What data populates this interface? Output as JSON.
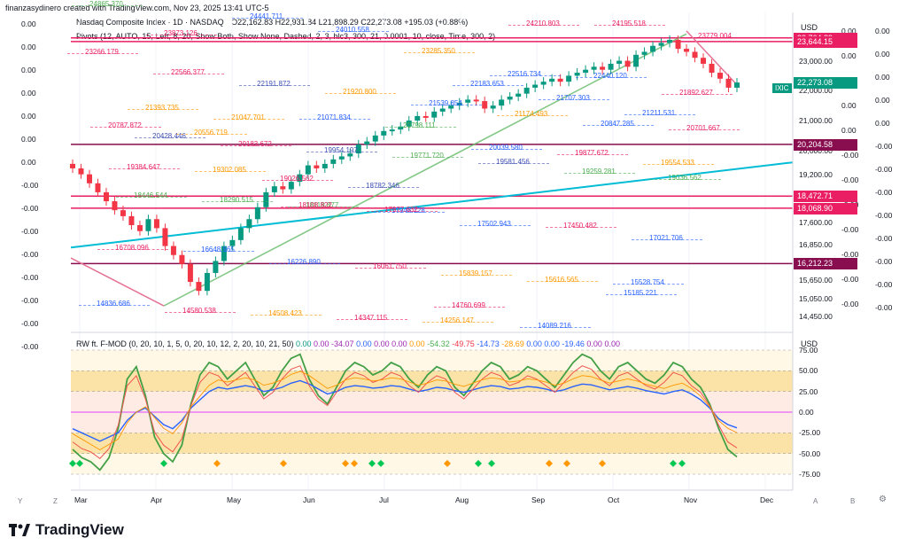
{
  "credit": "finanzasydinero created with TradingView.com, Nov 23, 2025 13:41 UTC-5",
  "title": {
    "name": "Nasdaq Composite Index · 1D · NASDAQ",
    "ohlc": "O22,162.83 H22,931.84 L21,898.29 C22,273.08 +195.03 (+0.88%)"
  },
  "indicator_pivots": "Pivots (12, AUTO, 15, Left, 8, 20, Show Both, Show None, Dashed, 2, 3, hlc3, 300, 21, 0.0001, 10, close, Time, 300, 2)",
  "oscillator": {
    "name": "RW ft. F-MOD (0, 20, 10, 1, 5, 0, 20, 10, 12, 2, 20, 10, 21, 50)",
    "values": [
      {
        "text": "0.00",
        "color": "#089981"
      },
      {
        "text": "0.00",
        "color": "#9c27b0"
      },
      {
        "text": "-34.07",
        "color": "#9c27b0"
      },
      {
        "text": "0.00",
        "color": "#2962ff"
      },
      {
        "text": "0.00",
        "color": "#9c27b0"
      },
      {
        "text": "0.00",
        "color": "#9c27b0"
      },
      {
        "text": "0.00",
        "color": "#ff9800"
      },
      {
        "text": "-54.32",
        "color": "#4caf50"
      },
      {
        "text": "-49.75",
        "color": "#f23645"
      },
      {
        "text": "-14.73",
        "color": "#2962ff"
      },
      {
        "text": "-28.69",
        "color": "#ff9800"
      },
      {
        "text": "0.00",
        "color": "#2962ff"
      },
      {
        "text": "0.00",
        "color": "#2962ff"
      },
      {
        "text": "-19.46",
        "color": "#2962ff"
      },
      {
        "text": "0.00",
        "color": "#9c27b0"
      },
      {
        "text": "0.00",
        "color": "#9c27b0"
      }
    ]
  },
  "currency": "USD",
  "osc_currency": "USD",
  "symbol_tag": "IXIC",
  "left_scale_values": [
    "0.00",
    "0.00",
    "0.00",
    "0.00",
    "0.00",
    "0.00",
    "0.00",
    "-0.00",
    "-0.00",
    "-0.00",
    "-0.00",
    "-0.00",
    "-0.00",
    "-0.00",
    "-0.00"
  ],
  "right_col1_values": [
    "0.00",
    "0.00",
    "0.00",
    "0.00",
    "0.00",
    "-0.00",
    "-0.00",
    "-0.00",
    "-0.00",
    "-0.00",
    "-0.00",
    "-0.00"
  ],
  "right_col2_values": [
    "0.00",
    "0.00",
    "0.00",
    "0.00",
    "0.00",
    "-0.00",
    "-0.00",
    "-0.00",
    "-0.00",
    "-0.00",
    "-0.00",
    "-0.00",
    "-0.00"
  ],
  "price_axis": [
    "23,000.00",
    "22,000.00",
    "21,000.00",
    "20,000.00",
    "19,200.00",
    "18,400.00",
    "17,600.00",
    "16,850.00",
    "16,200.00",
    "15,650.00",
    "15,050.00",
    "14,450.00"
  ],
  "price_tags": [
    {
      "text": "23,764.89",
      "color": "#e91e63"
    },
    {
      "text": "23,644.15",
      "color": "#e91e63"
    },
    {
      "text": "22,273.08",
      "color": "#089981"
    },
    {
      "text": "20,204.58",
      "color": "#880e4f"
    },
    {
      "text": "18,472.71",
      "color": "#e91e63"
    },
    {
      "text": "18,068.90",
      "color": "#e91e63"
    },
    {
      "text": "16,212.23",
      "color": "#880e4f"
    }
  ],
  "osc_axis": [
    "75.00",
    "50.00",
    "25.00",
    "0.00",
    "-25.00",
    "-50.00",
    "-75.00"
  ],
  "months": [
    "Mar",
    "Apr",
    "May",
    "Jun",
    "Jul",
    "Aug",
    "Sep",
    "Oct",
    "Nov",
    "Dec"
  ],
  "bottom_letters": [
    "Y",
    "Z",
    "A",
    "B"
  ],
  "pivot_levels": [
    {
      "t": "23266.179",
      "c": "#e91e63"
    },
    {
      "t": "22566.377",
      "c": "#e91e63"
    },
    {
      "t": "22191.872",
      "c": "#3f51b5"
    },
    {
      "t": "21920.800",
      "c": "#ff9800"
    },
    {
      "t": "21539.854",
      "c": "#2962ff"
    },
    {
      "t": "21174.493",
      "c": "#ff9800"
    },
    {
      "t": "20847.285",
      "c": "#2962ff"
    },
    {
      "t": "20701.667",
      "c": "#e91e63"
    },
    {
      "t": "20428.446",
      "c": "#3f51b5"
    },
    {
      "t": "20183.672",
      "c": "#e91e63"
    },
    {
      "t": "19954.197",
      "c": "#3f51b5"
    },
    {
      "t": "19771.720",
      "c": "#4caf50"
    },
    {
      "t": "19581.456",
      "c": "#3f51b5"
    },
    {
      "t": "19259.281",
      "c": "#4caf50"
    },
    {
      "t": "19036.562",
      "c": "#4caf50"
    },
    {
      "t": "18446.544",
      "c": "#4caf50"
    },
    {
      "t": "18290.515",
      "c": "#4caf50"
    },
    {
      "t": "18119.877",
      "c": "#4caf50"
    },
    {
      "t": "17948.128",
      "c": "#2962ff"
    },
    {
      "t": "17502.943",
      "c": "#2962ff"
    },
    {
      "t": "17450.482",
      "c": "#e91e63"
    },
    {
      "t": "17021.706",
      "c": "#2962ff"
    },
    {
      "t": "16708.096",
      "c": "#e91e63"
    },
    {
      "t": "16648.965",
      "c": "#2962ff"
    },
    {
      "t": "16226.890",
      "c": "#2962ff"
    },
    {
      "t": "16061.750",
      "c": "#e91e63"
    },
    {
      "t": "15839.157",
      "c": "#ff9800"
    },
    {
      "t": "15616.565",
      "c": "#ff9800"
    },
    {
      "t": "15528.754",
      "c": "#2962ff"
    },
    {
      "t": "14836.686",
      "c": "#2962ff"
    },
    {
      "t": "14580.538",
      "c": "#e91e63"
    },
    {
      "t": "14508.423",
      "c": "#ff9800"
    },
    {
      "t": "14347.115",
      "c": "#e91e63"
    },
    {
      "t": "14256.147",
      "c": "#ff9800"
    },
    {
      "t": "24210.803",
      "c": "#e91e63"
    },
    {
      "t": "24195.518",
      "c": "#e91e63"
    },
    {
      "t": "23779.004",
      "c": "#e91e63"
    },
    {
      "t": "23873.126",
      "c": "#e91e63"
    },
    {
      "t": "24441.711",
      "c": "#2962ff"
    },
    {
      "t": "24010.558",
      "c": "#2962ff"
    },
    {
      "t": "23285.350",
      "c": "#ff9800"
    },
    {
      "t": "22516.734",
      "c": "#2962ff"
    },
    {
      "t": "22440.120",
      "c": "#2962ff"
    },
    {
      "t": "21892.627",
      "c": "#e91e63"
    },
    {
      "t": "21393.735",
      "c": "#ff9800"
    },
    {
      "t": "21047.701",
      "c": "#ff9800"
    },
    {
      "t": "21071.834",
      "c": "#2962ff"
    },
    {
      "t": "20798.111",
      "c": "#4caf50"
    },
    {
      "t": "20039.580",
      "c": "#2962ff"
    },
    {
      "t": "19877.672",
      "c": "#e91e63"
    },
    {
      "t": "19554.533",
      "c": "#ff9800"
    },
    {
      "t": "19384.647",
      "c": "#e91e63"
    },
    {
      "t": "19302.085",
      "c": "#ff9800"
    },
    {
      "t": "18108.822",
      "c": "#e91e63"
    },
    {
      "t": "17977.632",
      "c": "#e91e63"
    },
    {
      "t": "22183.653",
      "c": "#2962ff"
    },
    {
      "t": "21707.303",
      "c": "#2962ff"
    },
    {
      "t": "21211.531",
      "c": "#2962ff"
    },
    {
      "t": "20787.872",
      "c": "#e91e63"
    },
    {
      "t": "20556.719",
      "c": "#ff9800"
    },
    {
      "t": "19026.562",
      "c": "#e91e63"
    },
    {
      "t": "18782.346",
      "c": "#3f51b5"
    },
    {
      "t": "14760.699",
      "c": "#e91e63"
    },
    {
      "t": "14089.216",
      "c": "#2962ff"
    },
    {
      "t": "15185.221",
      "c": "#2962ff"
    },
    {
      "t": "24865.370",
      "c": "#4caf50"
    }
  ],
  "chart_data": [
    {
      "type": "line",
      "candles_close": [
        19400,
        19200,
        18900,
        18600,
        18300,
        18000,
        17800,
        17500,
        17300,
        17700,
        17400,
        16800,
        16500,
        16200,
        15600,
        15300,
        15900,
        16300,
        16800,
        17000,
        17400,
        17700,
        18100,
        18600,
        18800,
        18700,
        18950,
        19200,
        19500,
        19400,
        19550,
        19700,
        19800,
        19900,
        20200,
        20300,
        20500,
        20650,
        20700,
        20800,
        21000,
        21150,
        21100,
        21300,
        21400,
        21500,
        21600,
        21700,
        21650,
        21400,
        21500,
        21700,
        21800,
        21900,
        22100,
        22200,
        22300,
        22400,
        22300,
        22500,
        22600,
        22700,
        22800,
        22700,
        22900,
        23000,
        22800,
        23200,
        23300,
        23500,
        23600,
        23700,
        23400,
        23300,
        23100,
        22900,
        22600,
        22400,
        22100,
        22273
      ]
    },
    {
      "type": "line",
      "name": "RW ft. F-MOD",
      "ylim": [
        -75,
        75
      ],
      "green": [
        -45,
        -55,
        -60,
        -70,
        -55,
        -20,
        40,
        55,
        20,
        -30,
        -50,
        -60,
        -40,
        10,
        45,
        60,
        55,
        40,
        50,
        60,
        40,
        20,
        30,
        50,
        65,
        70,
        40,
        20,
        10,
        30,
        50,
        60,
        55,
        45,
        50,
        60,
        55,
        40,
        30,
        45,
        55,
        50,
        30,
        20,
        35,
        50,
        60,
        55,
        40,
        45,
        55,
        50,
        40,
        30,
        45,
        60,
        70,
        65,
        50,
        40,
        55,
        60,
        50,
        40,
        35,
        45,
        60,
        55,
        40,
        30,
        10,
        -20,
        -45,
        -54
      ],
      "blue": [
        -20,
        -25,
        -30,
        -35,
        -30,
        -25,
        -10,
        0,
        5,
        -5,
        -15,
        -20,
        -10,
        5,
        15,
        25,
        30,
        28,
        30,
        32,
        30,
        25,
        27,
        30,
        35,
        38,
        34,
        28,
        22,
        25,
        30,
        32,
        31,
        29,
        30,
        32,
        31,
        28,
        25,
        27,
        30,
        29,
        26,
        24,
        27,
        30,
        32,
        31,
        28,
        29,
        31,
        30,
        28,
        25,
        27,
        31,
        34,
        33,
        30,
        27,
        29,
        31,
        29,
        26,
        24,
        22,
        25,
        27,
        22,
        15,
        5,
        -8,
        -15,
        -19
      ]
    }
  ]
}
